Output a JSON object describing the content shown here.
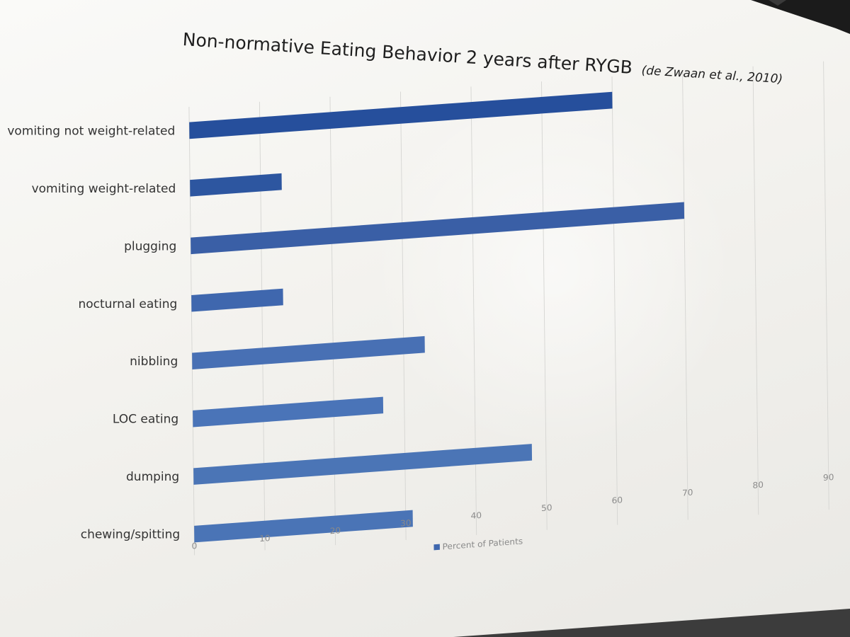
{
  "chart_data": {
    "type": "bar",
    "orientation": "horizontal",
    "title": "Non-normative Eating Behavior 2 years after RYGB",
    "subtitle": "(de Zwaan et al., 2010)",
    "categories": [
      "vomiting not weight-related",
      "vomiting  weight-related",
      "plugging",
      "nocturnal eating",
      "nibbling",
      "LOC eating",
      "dumping",
      "chewing/spitting"
    ],
    "series": [
      {
        "name": "Percent of Patients",
        "values": [
          60,
          13,
          70,
          13,
          33,
          27,
          48,
          31
        ],
        "color": "#3f67ae"
      }
    ],
    "bar_colors": [
      "#264f9c",
      "#2d56a0",
      "#3a5fa6",
      "#3f67ae",
      "#4870b4",
      "#4a74b8",
      "#4b75b6",
      "#4a74b6"
    ],
    "xticks": [
      "0",
      "10",
      "20",
      "30",
      "40",
      "50",
      "60",
      "70",
      "80",
      "90"
    ],
    "xlim": [
      0,
      90
    ],
    "grid": true,
    "legend_position": "bottom"
  }
}
